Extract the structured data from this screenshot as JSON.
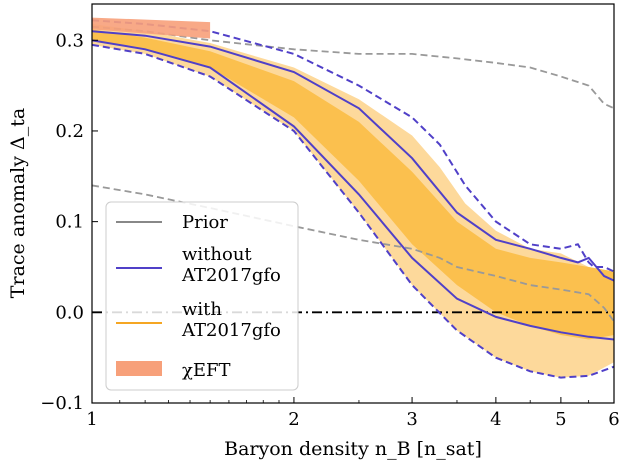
{
  "chart_data": {
    "type": "line",
    "xlabel": "Baryon density n_B [n_sat]",
    "ylabel": "Trace anomaly Δ_ta",
    "xscale": "log",
    "xlim": [
      1,
      6
    ],
    "ylim": [
      -0.1,
      0.34
    ],
    "xticks": [
      1,
      2,
      3,
      4,
      5,
      6
    ],
    "xtick_labels": [
      "1",
      "2",
      "3",
      "4",
      "5",
      "6"
    ],
    "yticks": [
      -0.1,
      0.0,
      0.1,
      0.2,
      0.3
    ],
    "ytick_labels": [
      "−0.1",
      "0.0",
      "0.1",
      "0.2",
      "0.3"
    ],
    "reference_line": {
      "y": 0.0,
      "style": "dash-dot",
      "color": "#000000"
    },
    "legend": {
      "placement": "lower-left",
      "entries": [
        {
          "lines": [
            "Prior"
          ],
          "kind": "line",
          "color": "#888888"
        },
        {
          "lines": [
            "without",
            "AT2017gfo"
          ],
          "kind": "line",
          "color": "#5040c8"
        },
        {
          "lines": [
            "with",
            "AT2017gfo"
          ],
          "kind": "line",
          "color": "#f5a623"
        },
        {
          "lines": [
            "χEFT"
          ],
          "kind": "patch",
          "color": "#f7a07a"
        }
      ]
    },
    "series": [
      {
        "name": "Prior",
        "style": "dashed",
        "color": "#999999",
        "upper": {
          "x": [
            1,
            1.2,
            1.5,
            2,
            2.5,
            3,
            3.5,
            4,
            4.5,
            5,
            5.5,
            5.8,
            6
          ],
          "y": [
            0.315,
            0.31,
            0.3,
            0.29,
            0.285,
            0.285,
            0.28,
            0.275,
            0.27,
            0.26,
            0.25,
            0.23,
            0.225
          ]
        },
        "lower": {
          "x": [
            1,
            1.2,
            1.5,
            2,
            2.5,
            3,
            3.3,
            3.5,
            4,
            4.5,
            5,
            5.5,
            5.8,
            6
          ],
          "y": [
            0.14,
            0.13,
            0.115,
            0.095,
            0.08,
            0.07,
            0.06,
            0.05,
            0.04,
            0.03,
            0.025,
            0.02,
            0.005,
            -0.01
          ]
        }
      },
      {
        "name": "with AT2017gfo 95%",
        "style": "fill",
        "color": "#fdd99b",
        "upper": {
          "x": [
            1,
            1.2,
            1.5,
            2,
            2.5,
            3,
            3.3,
            3.6,
            4,
            4.5,
            5,
            5.5,
            6
          ],
          "y": [
            0.318,
            0.31,
            0.297,
            0.27,
            0.235,
            0.195,
            0.16,
            0.12,
            0.09,
            0.07,
            0.065,
            0.05,
            0.045
          ]
        },
        "lower": {
          "x": [
            1,
            1.2,
            1.5,
            2,
            2.5,
            3,
            3.5,
            4,
            4.5,
            5,
            5.5,
            6
          ],
          "y": [
            0.295,
            0.285,
            0.26,
            0.2,
            0.11,
            0.03,
            -0.02,
            -0.05,
            -0.065,
            -0.072,
            -0.07,
            -0.055
          ]
        }
      },
      {
        "name": "with AT2017gfo 68%",
        "style": "fill",
        "color": "#fbc04e",
        "upper": {
          "x": [
            1,
            1.2,
            1.5,
            2,
            2.5,
            3,
            3.5,
            4,
            4.5,
            5,
            5.5,
            6
          ],
          "y": [
            0.312,
            0.303,
            0.288,
            0.255,
            0.21,
            0.155,
            0.1,
            0.07,
            0.06,
            0.055,
            0.05,
            0.045
          ]
        },
        "lower": {
          "x": [
            1,
            1.2,
            1.5,
            2,
            2.5,
            3,
            3.5,
            4,
            4.5,
            5,
            5.5,
            6
          ],
          "y": [
            0.3,
            0.29,
            0.27,
            0.215,
            0.145,
            0.075,
            0.03,
            0.0,
            -0.015,
            -0.025,
            -0.03,
            -0.025
          ]
        }
      },
      {
        "name": "without AT2017gfo",
        "style": "solid",
        "color": "#5040c8",
        "upper": {
          "x": [
            1,
            1.2,
            1.5,
            2,
            2.5,
            3,
            3.5,
            4,
            4.5,
            5,
            5.3,
            5.5,
            5.8,
            6
          ],
          "y": [
            0.31,
            0.305,
            0.293,
            0.265,
            0.225,
            0.17,
            0.11,
            0.08,
            0.07,
            0.06,
            0.055,
            0.06,
            0.04,
            0.035
          ]
        },
        "lower": {
          "x": [
            1,
            1.2,
            1.5,
            2,
            2.5,
            3,
            3.5,
            4,
            4.5,
            5,
            5.5,
            6
          ],
          "y": [
            0.3,
            0.29,
            0.27,
            0.205,
            0.13,
            0.06,
            0.015,
            -0.005,
            -0.015,
            -0.022,
            -0.027,
            -0.03
          ]
        }
      },
      {
        "name": "without AT2017gfo 95%",
        "style": "dashed",
        "color": "#5040c8",
        "upper": {
          "x": [
            1,
            1.2,
            1.5,
            2,
            2.5,
            3,
            3.3,
            3.6,
            4,
            4.5,
            5,
            5.3,
            5.4,
            5.5,
            5.6,
            5.8,
            6
          ],
          "y": [
            0.322,
            0.318,
            0.31,
            0.285,
            0.25,
            0.215,
            0.185,
            0.14,
            0.1,
            0.075,
            0.07,
            0.075,
            0.065,
            0.055,
            0.05,
            0.05,
            0.045
          ]
        },
        "lower": {
          "x": [
            1,
            1.2,
            1.5,
            2,
            2.5,
            3,
            3.5,
            4,
            4.5,
            5,
            5.5,
            6
          ],
          "y": [
            0.295,
            0.285,
            0.26,
            0.2,
            0.11,
            0.03,
            -0.02,
            -0.05,
            -0.065,
            -0.072,
            -0.07,
            -0.06
          ]
        }
      },
      {
        "name": "χEFT",
        "style": "band",
        "color": "#f7a07a",
        "x": [
          1,
          1.5
        ],
        "upper": [
          0.325,
          0.32
        ],
        "lower": [
          0.312,
          0.302
        ]
      }
    ]
  }
}
